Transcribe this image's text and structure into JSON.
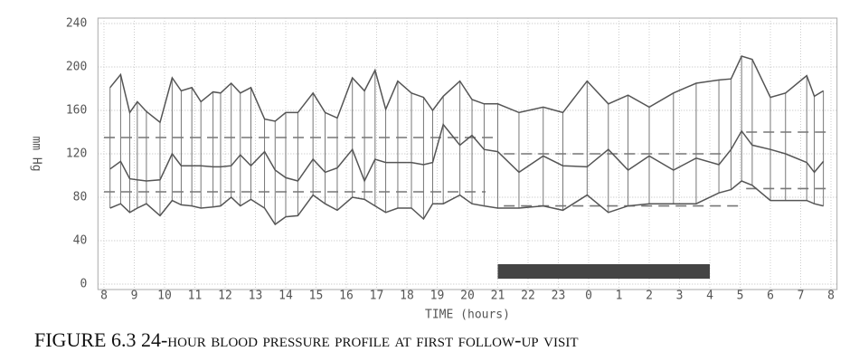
{
  "chart_data": {
    "type": "line",
    "caption": "FIGURE 6.3 24-hour blood pressure profile at first follow-up visit",
    "x_label": "TIME (hours)",
    "y_label": "mm Hg",
    "xlim": [
      -0.2,
      24.2
    ],
    "ylim": [
      -5,
      245
    ],
    "yticks": [
      0,
      40,
      80,
      120,
      160,
      200,
      240
    ],
    "xticks": [
      {
        "value": 0,
        "label": "8"
      },
      {
        "value": 1,
        "label": "9"
      },
      {
        "value": 2,
        "label": "10"
      },
      {
        "value": 3,
        "label": "11"
      },
      {
        "value": 4,
        "label": "12"
      },
      {
        "value": 5,
        "label": "13"
      },
      {
        "value": 6,
        "label": "14"
      },
      {
        "value": 7,
        "label": "15"
      },
      {
        "value": 8,
        "label": "16"
      },
      {
        "value": 9,
        "label": "17"
      },
      {
        "value": 10,
        "label": "18"
      },
      {
        "value": 11,
        "label": "19"
      },
      {
        "value": 12,
        "label": "20"
      },
      {
        "value": 13,
        "label": "21"
      },
      {
        "value": 14,
        "label": "22"
      },
      {
        "value": 15,
        "label": "23"
      },
      {
        "value": 16,
        "label": "0"
      },
      {
        "value": 17,
        "label": "1"
      },
      {
        "value": 18,
        "label": "2"
      },
      {
        "value": 19,
        "label": "3"
      },
      {
        "value": 20,
        "label": "4"
      },
      {
        "value": 21,
        "label": "5"
      },
      {
        "value": 22,
        "label": "6"
      },
      {
        "value": 23,
        "label": "7"
      },
      {
        "value": 24,
        "label": "8"
      }
    ],
    "grid": true,
    "x": [
      0.2,
      0.55,
      0.85,
      1.1,
      1.4,
      1.85,
      2.25,
      2.55,
      2.9,
      3.2,
      3.6,
      3.85,
      4.2,
      4.5,
      4.85,
      5.3,
      5.65,
      6.0,
      6.4,
      6.9,
      7.3,
      7.7,
      8.2,
      8.6,
      8.95,
      9.3,
      9.7,
      10.15,
      10.55,
      10.85,
      11.2,
      11.75,
      12.15,
      12.55,
      13.0,
      13.7,
      14.5,
      15.15,
      15.95,
      16.65,
      17.3,
      18.0,
      18.8,
      19.55,
      20.3,
      20.7,
      21.05,
      21.4,
      22.0,
      22.5,
      23.2,
      23.45,
      23.75
    ],
    "series": [
      {
        "color": "#555555",
        "values": [
          181,
          193,
          158,
          168,
          159,
          149,
          190,
          178,
          181,
          168,
          177,
          176,
          185,
          176,
          181,
          152,
          150,
          158,
          158,
          176,
          158,
          153,
          190,
          178,
          197,
          161,
          187,
          176,
          172,
          160,
          173,
          187,
          170,
          166,
          166,
          158,
          163,
          158,
          187,
          166,
          174,
          163,
          176,
          185,
          188,
          189,
          210,
          207,
          172,
          176,
          192,
          173,
          178
        ]
      },
      {
        "color": "#555555",
        "values": [
          106,
          113,
          97,
          96,
          95,
          96,
          120,
          109,
          109,
          109,
          108,
          108,
          109,
          119,
          109,
          122,
          105,
          98,
          95,
          115,
          103,
          107,
          124,
          95,
          115,
          112,
          112,
          112,
          110,
          112,
          147,
          128,
          137,
          124,
          122,
          103,
          118,
          109,
          108,
          124,
          105,
          118,
          105,
          116,
          110,
          124,
          141,
          128,
          124,
          120,
          112,
          103,
          113
        ]
      },
      {
        "color": "#555555",
        "values": [
          70,
          74,
          66,
          70,
          74,
          63,
          77,
          73,
          72,
          70,
          71,
          72,
          80,
          72,
          78,
          70,
          55,
          62,
          63,
          82,
          74,
          68,
          80,
          78,
          72,
          66,
          70,
          70,
          60,
          74,
          74,
          82,
          74,
          72,
          70,
          70,
          72,
          68,
          82,
          66,
          72,
          74,
          74,
          74,
          84,
          87,
          95,
          91,
          77,
          77,
          77,
          74,
          72
        ]
      }
    ],
    "reference_lines": [
      {
        "value": 135,
        "from": 0,
        "to": 13.0
      },
      {
        "value": 120,
        "from": 13.2,
        "to": 20.6
      },
      {
        "value": 140,
        "from": 21.2,
        "to": 24.0
      },
      {
        "value": 85,
        "from": 0,
        "to": 12.6
      },
      {
        "value": 72,
        "from": 13.2,
        "to": 21.0
      },
      {
        "value": 88,
        "from": 21.2,
        "to": 24.0
      }
    ],
    "reference_color": "#777777",
    "night_bar": {
      "from": 13,
      "to": 20,
      "color": "#444444"
    }
  }
}
